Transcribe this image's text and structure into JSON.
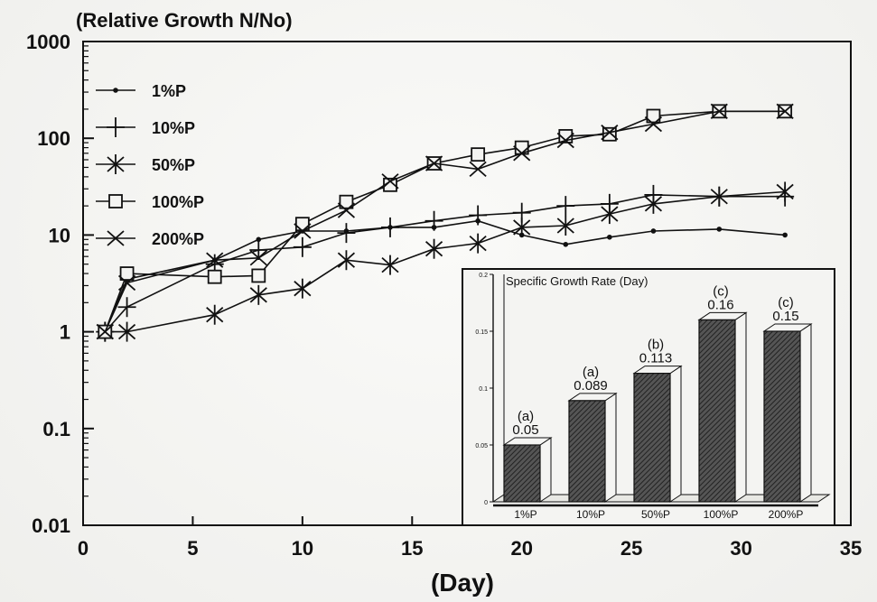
{
  "chart_data": [
    {
      "type": "line",
      "title": "",
      "ylabel": "(Relative Growth N/No)",
      "xlabel": "(Day)",
      "yscale": "log",
      "xlim": [
        0,
        35
      ],
      "ylim": [
        0.01,
        1000
      ],
      "x_ticks": [
        "0",
        "5",
        "10",
        "15",
        "20",
        "25",
        "30",
        "35"
      ],
      "y_ticks": [
        "0.01",
        "0.1",
        "1",
        "10",
        "100",
        "1000"
      ],
      "legend_position": "top-left",
      "series": [
        {
          "name": "1%P",
          "marker": "dot",
          "x": [
            1,
            2,
            6,
            8,
            10,
            12,
            14,
            16,
            18,
            20,
            22,
            24,
            26,
            29,
            32
          ],
          "y": [
            1,
            3.5,
            5.5,
            9,
            11,
            11,
            12,
            12,
            14,
            10,
            8,
            9.5,
            11,
            11.5,
            10
          ]
        },
        {
          "name": "10%P",
          "marker": "plus",
          "x": [
            1,
            2,
            6,
            8,
            10,
            12,
            14,
            16,
            18,
            20,
            22,
            24,
            26,
            29,
            32
          ],
          "y": [
            1,
            1.8,
            5,
            7,
            7.5,
            10.5,
            12,
            14,
            16,
            17,
            20,
            21,
            26,
            25,
            25
          ]
        },
        {
          "name": "50%P",
          "marker": "star",
          "x": [
            1,
            2,
            6,
            8,
            10,
            12,
            14,
            16,
            18,
            20,
            22,
            24,
            26,
            29,
            32
          ],
          "y": [
            1,
            1,
            1.5,
            2.4,
            2.8,
            5.5,
            4.9,
            7.2,
            8.2,
            12,
            12.5,
            16.5,
            21,
            25,
            28
          ]
        },
        {
          "name": "100%P",
          "marker": "square",
          "x": [
            1,
            2,
            6,
            8,
            10,
            12,
            14,
            16,
            18,
            20,
            22,
            24,
            26,
            29,
            32
          ],
          "y": [
            1,
            4,
            3.7,
            3.8,
            13,
            22,
            33,
            55,
            68,
            80,
            105,
            110,
            170,
            190,
            190
          ]
        },
        {
          "name": "200%P",
          "marker": "x",
          "x": [
            1,
            2,
            6,
            8,
            10,
            12,
            14,
            16,
            18,
            20,
            22,
            24,
            26,
            29,
            32
          ],
          "y": [
            1,
            3.2,
            5.5,
            5.8,
            11,
            18,
            36,
            55,
            48,
            70,
            95,
            115,
            140,
            190,
            190
          ]
        }
      ]
    },
    {
      "type": "bar",
      "title": "Specific Growth Rate (Day)",
      "categories": [
        "1%P",
        "10%P",
        "50%P",
        "100%P",
        "200%P"
      ],
      "values": [
        0.05,
        0.089,
        0.113,
        0.16,
        0.15
      ],
      "value_labels": [
        "0.05",
        "0.089",
        "0.113",
        "0.16",
        "0.15"
      ],
      "group_labels": [
        "(a)",
        "(a)",
        "(b)",
        "(c)",
        "(c)"
      ],
      "ylim": [
        0,
        0.2
      ],
      "y_ticks": [
        "0",
        "0.05",
        "0.1",
        "0.15",
        "0.2"
      ],
      "legend_position": "none"
    }
  ]
}
